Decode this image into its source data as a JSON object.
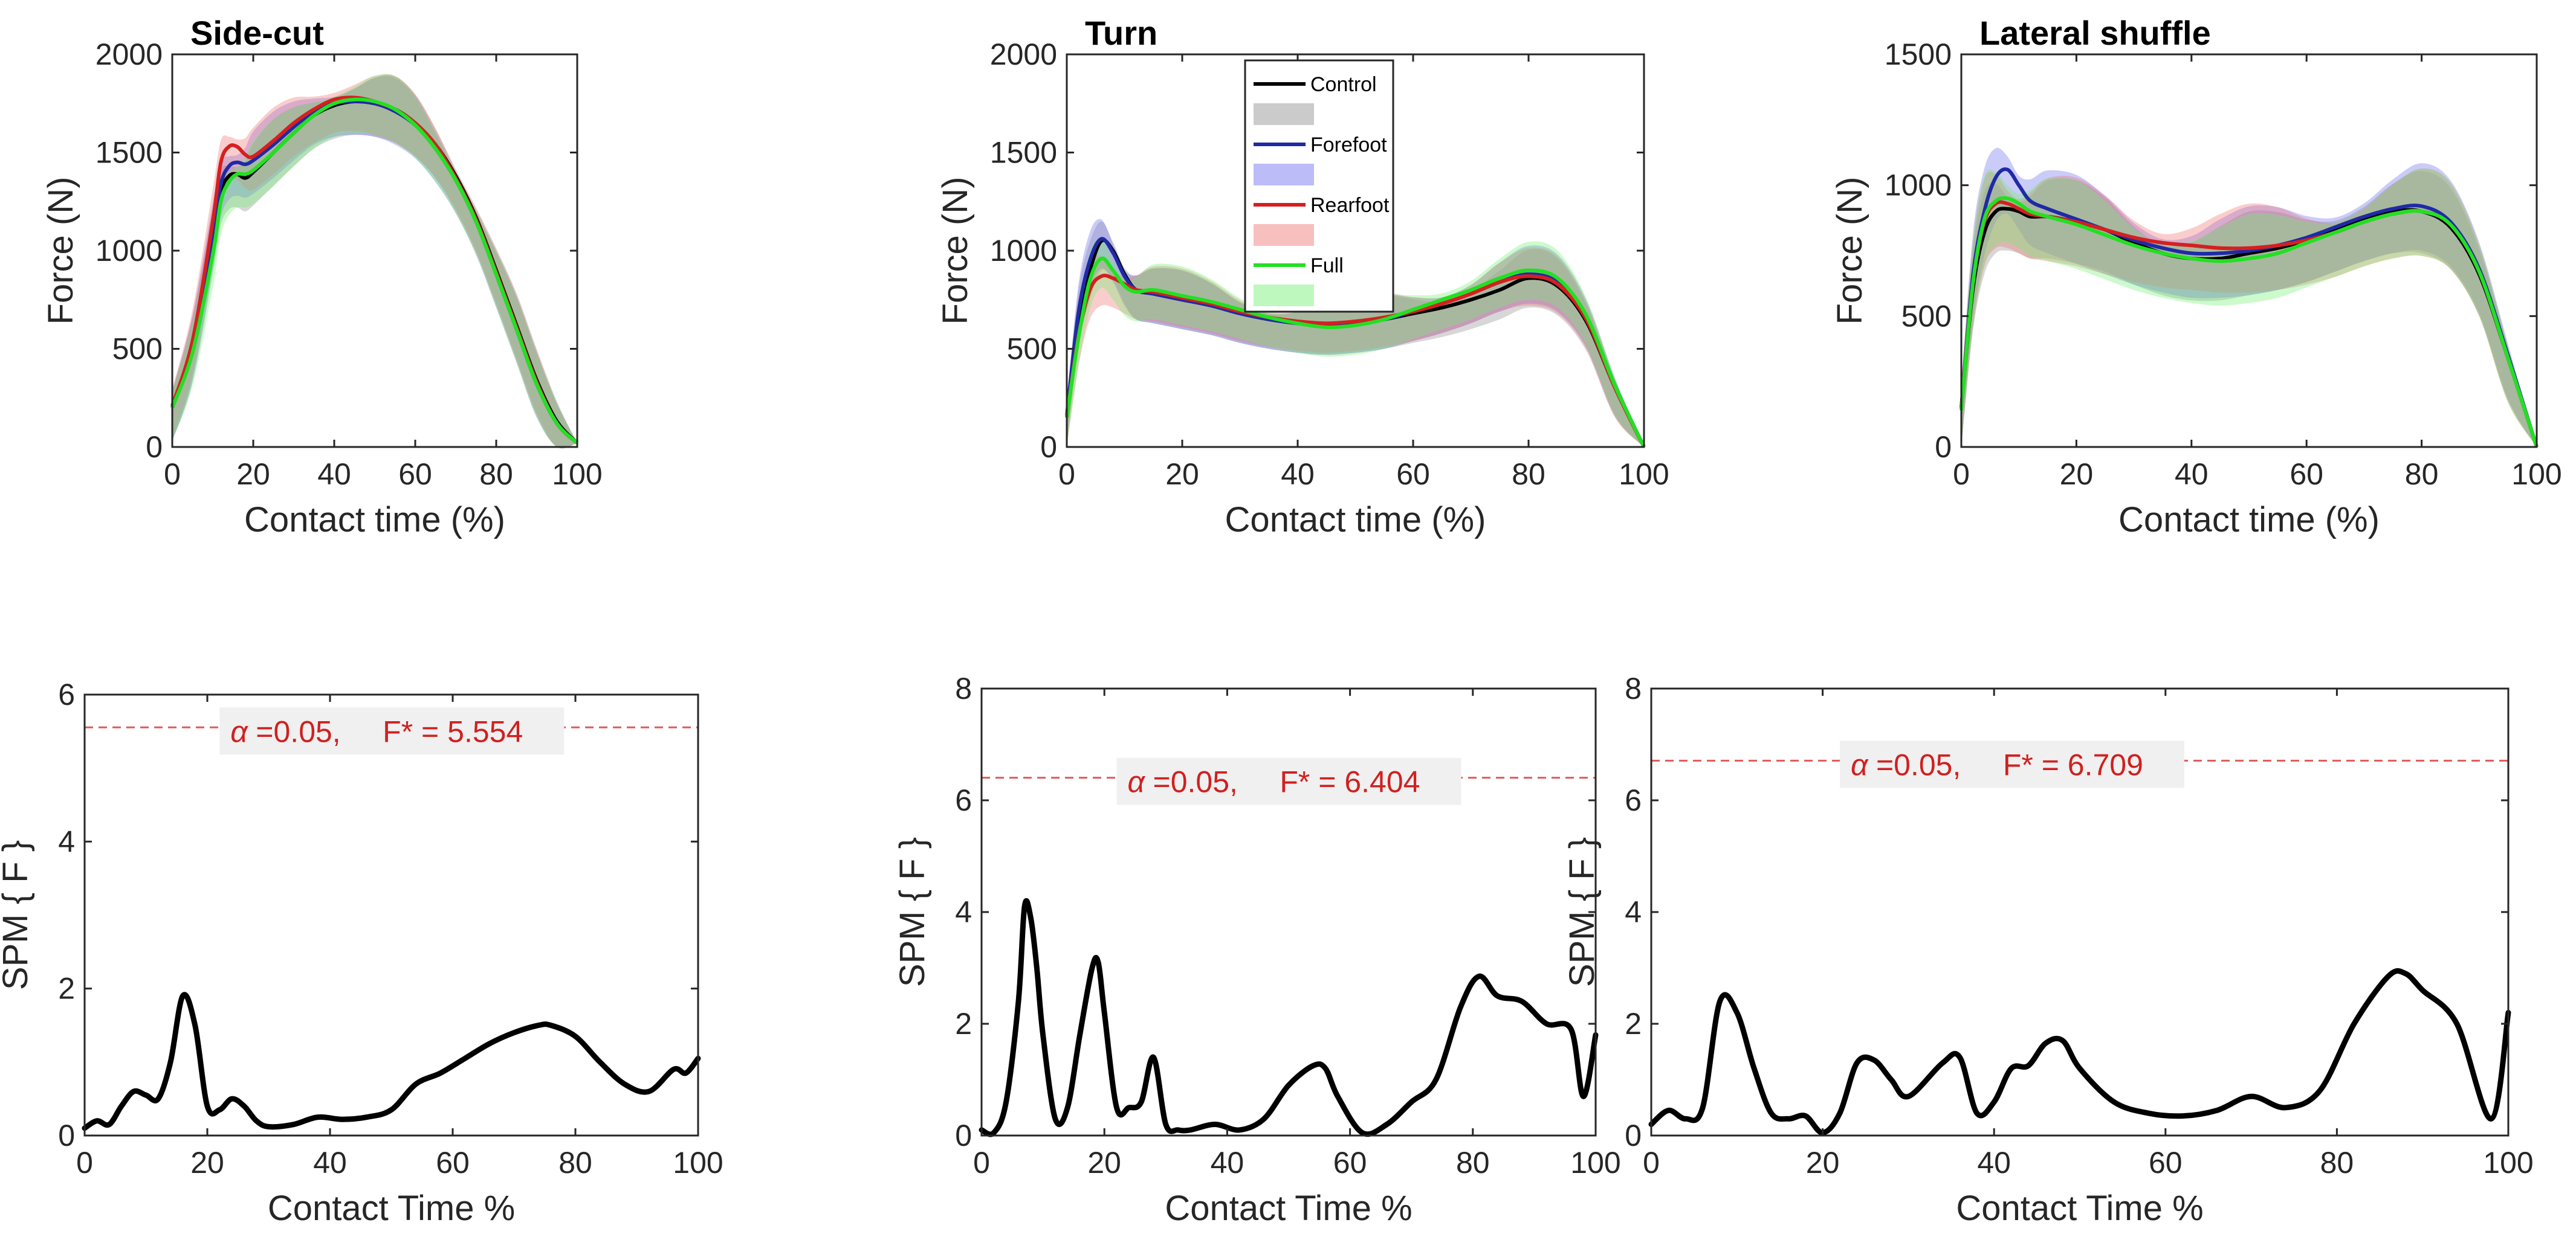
{
  "colors": {
    "control": "#000000",
    "forefoot": "#1f2aa6",
    "rearfoot": "#d42020",
    "full": "#22e022",
    "control_band": "#8c8c8c",
    "forefoot_band": "#6b6bf0",
    "rearfoot_band": "#f07070",
    "full_band": "#6ff06f",
    "threshold": "#e05a5a",
    "threshold_text": "#d02020",
    "spm_line": "#000000"
  },
  "chart_data": [
    {
      "id": "force-sidecut",
      "type": "line",
      "title": "Side-cut",
      "xlabel": "Contact time (%)",
      "ylabel": "Force (N)",
      "xlim": [
        0,
        100
      ],
      "ylim": [
        0,
        2000
      ],
      "xticks": [
        0,
        20,
        40,
        60,
        80,
        100
      ],
      "yticks": [
        0,
        500,
        1000,
        1500,
        2000
      ],
      "x": [
        0,
        5,
        10,
        12,
        14,
        16,
        18,
        20,
        25,
        30,
        35,
        40,
        45,
        50,
        55,
        60,
        65,
        70,
        75,
        80,
        85,
        90,
        95,
        100
      ],
      "series": [
        {
          "name": "Control",
          "values": [
            200,
            500,
            1050,
            1300,
            1380,
            1390,
            1370,
            1400,
            1500,
            1600,
            1690,
            1740,
            1760,
            1750,
            1720,
            1650,
            1540,
            1380,
            1170,
            900,
            620,
            340,
            130,
            20
          ],
          "band": 170
        },
        {
          "name": "Forefoot",
          "values": [
            200,
            510,
            1080,
            1340,
            1430,
            1450,
            1440,
            1460,
            1540,
            1630,
            1710,
            1750,
            1760,
            1750,
            1710,
            1640,
            1520,
            1360,
            1150,
            880,
            600,
            320,
            120,
            20
          ],
          "band": 170
        },
        {
          "name": "Rearfoot",
          "values": [
            210,
            540,
            1150,
            1450,
            1530,
            1530,
            1490,
            1480,
            1560,
            1650,
            1720,
            1770,
            1780,
            1760,
            1720,
            1650,
            1540,
            1370,
            1160,
            890,
            610,
            330,
            120,
            20
          ],
          "band": 170
        },
        {
          "name": "Full",
          "values": [
            200,
            480,
            980,
            1250,
            1350,
            1390,
            1390,
            1410,
            1500,
            1600,
            1690,
            1750,
            1770,
            1760,
            1720,
            1640,
            1520,
            1360,
            1150,
            880,
            600,
            320,
            120,
            20
          ],
          "band": 170
        }
      ],
      "legend": null
    },
    {
      "id": "force-turn",
      "type": "line",
      "title": "Turn",
      "xlabel": "Contact time (%)",
      "ylabel": "Force (N)",
      "xlim": [
        0,
        100
      ],
      "ylim": [
        0,
        2000
      ],
      "xticks": [
        0,
        20,
        40,
        60,
        80,
        100
      ],
      "yticks": [
        0,
        500,
        1000,
        1500,
        2000
      ],
      "x": [
        0,
        2,
        4,
        6,
        8,
        10,
        12,
        15,
        20,
        25,
        30,
        35,
        40,
        45,
        50,
        55,
        60,
        65,
        70,
        75,
        80,
        85,
        90,
        95,
        100
      ],
      "series": [
        {
          "name": "Control",
          "values": [
            150,
            650,
            900,
            1050,
            1000,
            880,
            800,
            780,
            750,
            720,
            680,
            650,
            630,
            620,
            630,
            650,
            680,
            710,
            750,
            800,
            860,
            820,
            640,
            300,
            0
          ],
          "band": 150
        },
        {
          "name": "Forefoot",
          "values": [
            160,
            680,
            950,
            1060,
            990,
            870,
            800,
            780,
            750,
            720,
            680,
            650,
            630,
            620,
            630,
            650,
            690,
            730,
            780,
            840,
            880,
            840,
            660,
            310,
            0
          ],
          "band": 150
        },
        {
          "name": "Rearfoot",
          "values": [
            150,
            560,
            800,
            870,
            860,
            830,
            800,
            790,
            760,
            730,
            690,
            660,
            640,
            630,
            640,
            660,
            690,
            730,
            780,
            840,
            870,
            830,
            650,
            300,
            0
          ],
          "band": 150
        },
        {
          "name": "Full",
          "values": [
            150,
            550,
            850,
            960,
            900,
            820,
            790,
            800,
            770,
            740,
            700,
            660,
            630,
            610,
            620,
            650,
            700,
            750,
            800,
            860,
            900,
            860,
            670,
            310,
            0
          ],
          "band": 150
        }
      ],
      "legend": {
        "entries": [
          "Control",
          "",
          "Forefoot",
          "",
          "Rearfoot",
          "",
          "Full",
          ""
        ],
        "placement": "top-center"
      }
    },
    {
      "id": "force-shuffle",
      "type": "line",
      "title": "Lateral shuffle",
      "xlabel": "Contact time (%)",
      "ylabel": "Force (N)",
      "xlim": [
        0,
        100
      ],
      "ylim": [
        0,
        1500
      ],
      "xticks": [
        0,
        20,
        40,
        60,
        80,
        100
      ],
      "yticks": [
        0,
        500,
        1000,
        1500
      ],
      "x": [
        0,
        2,
        4,
        6,
        8,
        10,
        12,
        15,
        20,
        25,
        30,
        35,
        40,
        45,
        50,
        55,
        60,
        65,
        70,
        75,
        80,
        85,
        90,
        95,
        100
      ],
      "series": [
        {
          "name": "Control",
          "values": [
            150,
            600,
            820,
            900,
            910,
            900,
            880,
            880,
            860,
            830,
            780,
            740,
            720,
            720,
            740,
            760,
            790,
            830,
            870,
            900,
            900,
            840,
            660,
            340,
            0
          ],
          "band": 160
        },
        {
          "name": "Forefoot",
          "values": [
            150,
            650,
            900,
            1030,
            1060,
            1000,
            940,
            910,
            870,
            830,
            790,
            760,
            740,
            740,
            750,
            770,
            800,
            840,
            880,
            910,
            920,
            860,
            680,
            350,
            0
          ],
          "band": 170
        },
        {
          "name": "Rearfoot",
          "values": [
            150,
            620,
            860,
            930,
            930,
            910,
            890,
            880,
            860,
            830,
            800,
            780,
            770,
            760,
            760,
            770,
            790,
            820,
            860,
            890,
            900,
            850,
            670,
            340,
            0
          ],
          "band": 170
        },
        {
          "name": "Full",
          "values": [
            140,
            620,
            870,
            940,
            950,
            930,
            900,
            880,
            850,
            810,
            770,
            740,
            720,
            710,
            720,
            740,
            780,
            820,
            860,
            890,
            900,
            850,
            670,
            340,
            0
          ],
          "band": 170
        }
      ],
      "legend": null
    },
    {
      "id": "spm-sidecut",
      "type": "line",
      "title": "",
      "xlabel": "Contact Time %",
      "ylabel": "SPM { F }",
      "xlim": [
        0,
        100
      ],
      "ylim": [
        0,
        6
      ],
      "xticks": [
        0,
        20,
        40,
        60,
        80,
        100
      ],
      "yticks": [
        0,
        2,
        4,
        6
      ],
      "threshold": 5.554,
      "threshold_label": {
        "alpha": "α",
        "text": "=0.05,     F* = 5.554"
      },
      "x": [
        0,
        2,
        4,
        6,
        8,
        10,
        12,
        14,
        16,
        18,
        20,
        22,
        24,
        26,
        28,
        30,
        34,
        38,
        42,
        46,
        50,
        54,
        58,
        62,
        66,
        70,
        74,
        76,
        80,
        84,
        88,
        92,
        96,
        98,
        100
      ],
      "values": [
        0.1,
        0.2,
        0.15,
        0.4,
        0.6,
        0.55,
        0.5,
        1.0,
        1.9,
        1.5,
        0.4,
        0.35,
        0.5,
        0.4,
        0.2,
        0.12,
        0.15,
        0.25,
        0.22,
        0.25,
        0.35,
        0.7,
        0.85,
        1.05,
        1.25,
        1.4,
        1.5,
        1.5,
        1.35,
        1.0,
        0.7,
        0.6,
        0.9,
        0.85,
        1.05
      ]
    },
    {
      "id": "spm-turn",
      "type": "line",
      "title": "",
      "xlabel": "Contact Time %",
      "ylabel": "SPM { F }",
      "xlim": [
        0,
        100
      ],
      "ylim": [
        0,
        8
      ],
      "xticks": [
        0,
        20,
        40,
        60,
        80,
        100
      ],
      "yticks": [
        0,
        2,
        4,
        6,
        8
      ],
      "threshold": 6.404,
      "threshold_label": {
        "alpha": "α",
        "text": "=0.05,     F* = 6.404"
      },
      "x": [
        0,
        2,
        4,
        6,
        7,
        8,
        9,
        10,
        12,
        14,
        16,
        18,
        19,
        20,
        22,
        24,
        26,
        28,
        30,
        32,
        34,
        38,
        42,
        46,
        50,
        54,
        56,
        58,
        62,
        66,
        70,
        74,
        78,
        81,
        84,
        88,
        92,
        96,
        98,
        100
      ],
      "values": [
        0.1,
        0.05,
        0.6,
        2.4,
        4.1,
        3.9,
        3.0,
        1.8,
        0.3,
        0.5,
        1.8,
        3.0,
        3.1,
        2.2,
        0.5,
        0.5,
        0.6,
        1.4,
        0.2,
        0.1,
        0.1,
        0.2,
        0.1,
        0.3,
        0.9,
        1.25,
        1.2,
        0.7,
        0.05,
        0.2,
        0.6,
        1.0,
        2.3,
        2.85,
        2.5,
        2.4,
        2.0,
        1.9,
        0.7,
        1.8
      ]
    },
    {
      "id": "spm-shuffle",
      "type": "line",
      "title": "",
      "xlabel": "Contact Time %",
      "ylabel": "SPM { F }",
      "xlim": [
        0,
        100
      ],
      "ylim": [
        0,
        8
      ],
      "xticks": [
        0,
        20,
        40,
        60,
        80,
        100
      ],
      "yticks": [
        0,
        2,
        4,
        6,
        8
      ],
      "threshold": 6.709,
      "threshold_label": {
        "alpha": "α",
        "text": "=0.05,     F* = 6.709"
      },
      "x": [
        0,
        2,
        4,
        6,
        8,
        10,
        12,
        14,
        16,
        18,
        20,
        22,
        24,
        26,
        28,
        30,
        34,
        36,
        38,
        40,
        42,
        44,
        46,
        48,
        50,
        54,
        58,
        62,
        66,
        70,
        74,
        78,
        82,
        86,
        88,
        90,
        94,
        98,
        100
      ],
      "values": [
        0.2,
        0.45,
        0.3,
        0.5,
        2.4,
        2.2,
        1.2,
        0.4,
        0.3,
        0.35,
        0.05,
        0.4,
        1.3,
        1.35,
        1.0,
        0.7,
        1.3,
        1.4,
        0.4,
        0.6,
        1.2,
        1.25,
        1.65,
        1.7,
        1.2,
        0.6,
        0.4,
        0.35,
        0.45,
        0.7,
        0.5,
        0.8,
        2.0,
        2.85,
        2.9,
        2.6,
        2.0,
        0.3,
        2.2
      ]
    }
  ]
}
